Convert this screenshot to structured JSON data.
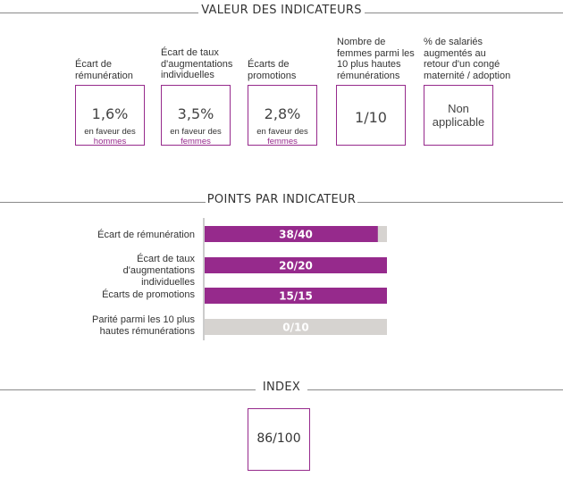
{
  "sections": {
    "values_title": "VALEUR DES INDICATEURS",
    "points_title": "POINTS PAR INDICATEUR",
    "index_title": "INDEX"
  },
  "indicators": [
    {
      "label": "Écart de rémunération",
      "value": "1,6%",
      "favor_prefix": "en faveur des",
      "favor_target": "hommes"
    },
    {
      "label": "Écart de taux d'augmentations individuelles",
      "value": "3,5%",
      "favor_prefix": "en faveur des",
      "favor_target": "femmes"
    },
    {
      "label": "Écarts de promotions",
      "value": "2,8%",
      "favor_prefix": "en faveur des",
      "favor_target": "femmes"
    },
    {
      "label": "Nombre de femmes parmi les 10 plus hautes rémunérations",
      "value": "1/10"
    },
    {
      "label": "% de salariés augmentés au retour d'un congé maternité / adoption",
      "value": "Non applicable"
    }
  ],
  "chart_data": {
    "type": "bar",
    "orientation": "horizontal",
    "title": "POINTS PAR INDICATEUR",
    "categories": [
      "Écart de rémunération",
      "Écart de taux d'augmentations individuelles",
      "Écarts de promotions",
      "Parité parmi les 10 plus hautes rémunérations"
    ],
    "values": [
      38,
      20,
      15,
      0
    ],
    "max_values": [
      40,
      20,
      15,
      10
    ],
    "data_labels": [
      "38/40",
      "20/20",
      "15/15",
      "0/10"
    ],
    "colors": {
      "fill": "#962a8c",
      "track": "#d6d3d0",
      "label": "#ffffff"
    }
  },
  "index": {
    "value": "86/100"
  },
  "colors": {
    "accent": "#962a8c",
    "rule": "#8a8a8a",
    "text": "#333333"
  }
}
